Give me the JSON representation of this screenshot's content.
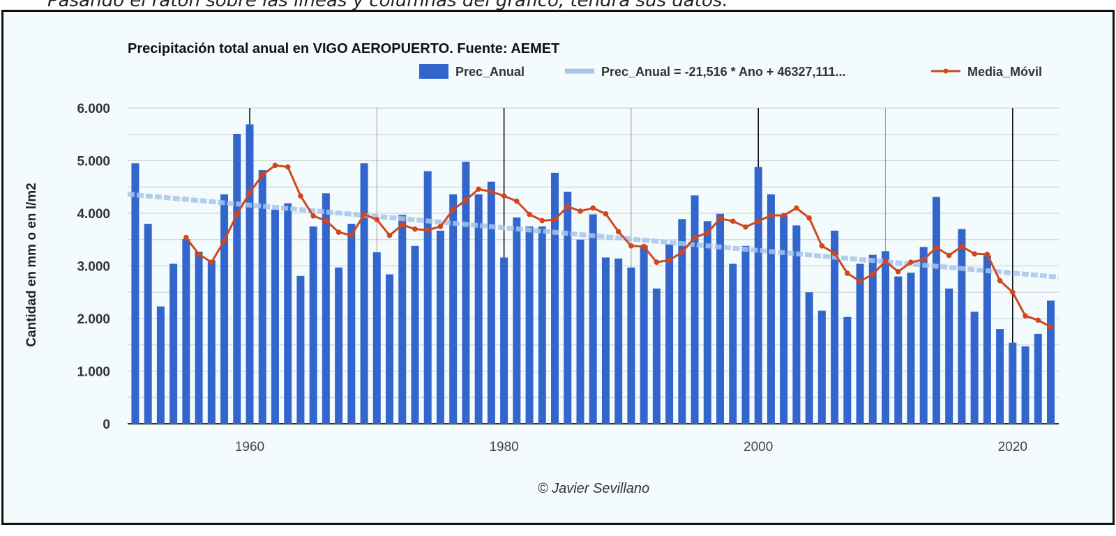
{
  "caption": "Pasando el ratón sobre las líneas y columnas del gráfico, tendrá sus datos.",
  "credit": "© Javier Sevillano",
  "chart_data": {
    "type": "bar",
    "title": "Precipitación total anual en VIGO AEROPUERTO. Fuente: AEMET",
    "xlabel": "",
    "ylabel": "Cantidad en mm o en l/m2",
    "ylim": [
      0,
      6000
    ],
    "yticks": [
      "0",
      "1.000",
      "2.000",
      "3.000",
      "4.000",
      "5.000",
      "6.000"
    ],
    "xticks": [
      "1960",
      "1980",
      "2000",
      "2020"
    ],
    "grid": true,
    "legend": "top-right",
    "colors": {
      "bars": "#3366cc",
      "trend": "#a8c4ea",
      "moving_average": "#d2461e"
    },
    "x": [
      1951,
      1952,
      1953,
      1954,
      1955,
      1956,
      1957,
      1958,
      1959,
      1960,
      1961,
      1962,
      1963,
      1964,
      1965,
      1966,
      1967,
      1968,
      1969,
      1970,
      1971,
      1972,
      1973,
      1974,
      1975,
      1976,
      1977,
      1978,
      1979,
      1980,
      1981,
      1982,
      1983,
      1984,
      1985,
      1986,
      1987,
      1988,
      1989,
      1990,
      1991,
      1992,
      1993,
      1994,
      1995,
      1996,
      1997,
      1998,
      1999,
      2000,
      2001,
      2002,
      2003,
      2004,
      2005,
      2006,
      2007,
      2008,
      2009,
      2010,
      2011,
      2012,
      2013,
      2014,
      2015,
      2016,
      2017,
      2018,
      2019,
      2020,
      2021,
      2022,
      2023
    ],
    "series": [
      {
        "name": "Prec_Anual",
        "type": "bar",
        "values": [
          4950,
          3800,
          2230,
          3040,
          3510,
          3270,
          3110,
          4360,
          5510,
          5690,
          4820,
          4070,
          4190,
          2810,
          3750,
          4380,
          2970,
          3800,
          4950,
          3260,
          2840,
          3970,
          3380,
          4800,
          3670,
          4360,
          4980,
          4360,
          4600,
          3160,
          3920,
          3750,
          3750,
          4770,
          4410,
          3500,
          3980,
          3160,
          3140,
          2970,
          3390,
          2570,
          3410,
          3890,
          4340,
          3850,
          3990,
          3040,
          3380,
          4880,
          4360,
          3960,
          3770,
          2500,
          2150,
          3670,
          2030,
          3040,
          3210,
          3280,
          2800,
          2870,
          3360,
          4310,
          2570,
          3700,
          2130,
          3200,
          1800,
          1540,
          1470,
          1710,
          2340
        ]
      },
      {
        "name": "Prec_Anual = -21,516 * Ano + 46327,111...",
        "type": "trendline",
        "slope": -21.516,
        "intercept": 46327.111
      },
      {
        "name": "Media_Móvil",
        "type": "line",
        "values": [
          null,
          null,
          null,
          null,
          3540,
          3220,
          3070,
          3480,
          3980,
          4390,
          4730,
          4910,
          4880,
          4330,
          3950,
          3860,
          3640,
          3580,
          3980,
          3880,
          3580,
          3780,
          3700,
          3680,
          3750,
          4070,
          4250,
          4460,
          4410,
          4330,
          4230,
          3980,
          3860,
          3880,
          4130,
          4040,
          4100,
          3990,
          3650,
          3380,
          3370,
          3070,
          3110,
          3260,
          3540,
          3630,
          3900,
          3850,
          3740,
          3850,
          3960,
          3960,
          4100,
          3910,
          3380,
          3240,
          2860,
          2710,
          2840,
          3090,
          2890,
          3070,
          3120,
          3350,
          3200,
          3370,
          3230,
          3220,
          2720,
          2500,
          2050,
          1970,
          1840
        ]
      }
    ]
  }
}
